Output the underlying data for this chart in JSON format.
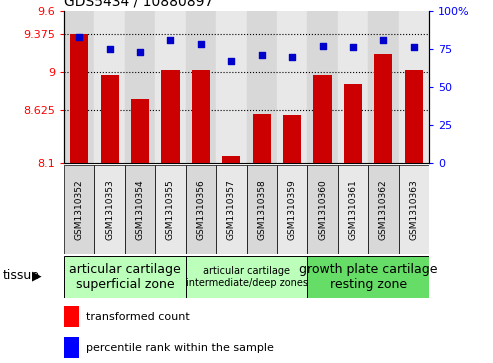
{
  "title": "GDS5434 / 10880897",
  "samples": [
    "GSM1310352",
    "GSM1310353",
    "GSM1310354",
    "GSM1310355",
    "GSM1310356",
    "GSM1310357",
    "GSM1310358",
    "GSM1310359",
    "GSM1310360",
    "GSM1310361",
    "GSM1310362",
    "GSM1310363"
  ],
  "bar_values": [
    9.37,
    8.97,
    8.73,
    9.02,
    9.02,
    8.17,
    8.59,
    8.58,
    8.97,
    8.88,
    9.18,
    9.02
  ],
  "scatter_values": [
    83,
    75,
    73,
    81,
    78,
    67,
    71,
    70,
    77,
    76,
    81,
    76
  ],
  "bar_color": "#cc0000",
  "scatter_color": "#0000cc",
  "ylim_left": [
    8.1,
    9.6
  ],
  "ylim_right": [
    0,
    100
  ],
  "yticks_left": [
    8.1,
    8.625,
    9.0,
    9.375,
    9.6
  ],
  "ytick_labels_left": [
    "8.1",
    "8.625",
    "9",
    "9.375",
    "9.6"
  ],
  "yticks_right": [
    0,
    25,
    50,
    75,
    100
  ],
  "ytick_labels_right": [
    "0",
    "25",
    "50",
    "75",
    "100%"
  ],
  "hlines": [
    8.625,
    9.0,
    9.375
  ],
  "tissue_groups": [
    {
      "label": "articular cartilage\nsuperficial zone",
      "start": 0,
      "end": 3,
      "color": "#ccffcc",
      "fontsize": 9
    },
    {
      "label": "articular cartilage\nintermediate/deep zones",
      "start": 4,
      "end": 7,
      "color": "#99ee99",
      "fontsize": 7
    },
    {
      "label": "growth plate cartilage\nresting zone",
      "start": 8,
      "end": 11,
      "color": "#66dd66",
      "fontsize": 9
    }
  ],
  "tissue_label": "tissue",
  "legend_bar_label": "transformed count",
  "legend_scatter_label": "percentile rank within the sample",
  "bar_width": 0.6,
  "col_colors": [
    "#d8d8d8",
    "#e8e8e8"
  ]
}
